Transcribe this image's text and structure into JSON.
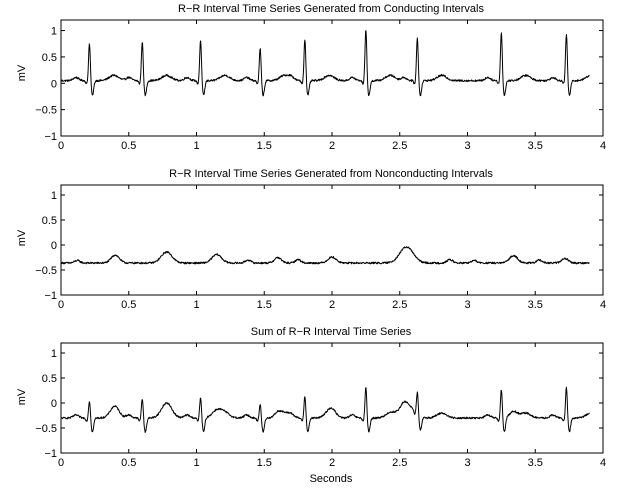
{
  "chart_data": [
    {
      "type": "line",
      "title": "R−R Interval Time Series Generated from Conducting Intervals",
      "xlabel": "",
      "ylabel": "mV",
      "xlim": [
        0,
        4
      ],
      "ylim": [
        -1,
        1.2
      ],
      "xticks": [
        "0",
        "0.5",
        "1",
        "1.5",
        "2",
        "2.5",
        "3",
        "3.5",
        "4"
      ],
      "yticks": [
        "−1",
        "−0.5",
        "0",
        "0.5",
        "1"
      ],
      "grid": false,
      "series": [
        {
          "baseline": 0.05,
          "end_x": 3.9,
          "beats": [
            0.21,
            0.6,
            1.03,
            1.47,
            1.8,
            2.25,
            2.63,
            3.25,
            3.73
          ],
          "r_amplitudes": [
            0.72,
            0.75,
            0.78,
            0.62,
            0.8,
            0.98,
            0.82,
            0.93,
            0.9
          ]
        }
      ]
    },
    {
      "type": "line",
      "title": "R−R Interval Time Series Generated from Nonconducting Intervals",
      "xlabel": "",
      "ylabel": "mV",
      "xlim": [
        0,
        4
      ],
      "ylim": [
        -1,
        1.2
      ],
      "xticks": [
        "0",
        "0.5",
        "1",
        "1.5",
        "2",
        "2.5",
        "3",
        "3.5",
        "4"
      ],
      "yticks": [
        "−1",
        "−0.5",
        "0",
        "0.5",
        "1"
      ],
      "grid": false,
      "series": [
        {
          "baseline": -0.36,
          "end_x": 3.9,
          "bumps": [
            {
              "x": 0.12,
              "height": 0.05,
              "width": 0.02
            },
            {
              "x": 0.4,
              "height": 0.16,
              "width": 0.03
            },
            {
              "x": 0.78,
              "height": 0.22,
              "width": 0.04
            },
            {
              "x": 1.15,
              "height": 0.17,
              "width": 0.035
            },
            {
              "x": 1.38,
              "height": 0.06,
              "width": 0.02
            },
            {
              "x": 1.6,
              "height": 0.11,
              "width": 0.025
            },
            {
              "x": 1.75,
              "height": 0.07,
              "width": 0.02
            },
            {
              "x": 2.0,
              "height": 0.12,
              "width": 0.03
            },
            {
              "x": 2.55,
              "height": 0.32,
              "width": 0.05
            },
            {
              "x": 2.87,
              "height": 0.07,
              "width": 0.02
            },
            {
              "x": 3.05,
              "height": 0.05,
              "width": 0.02
            },
            {
              "x": 3.34,
              "height": 0.15,
              "width": 0.03
            },
            {
              "x": 3.53,
              "height": 0.06,
              "width": 0.02
            },
            {
              "x": 3.72,
              "height": 0.09,
              "width": 0.025
            }
          ]
        }
      ]
    },
    {
      "type": "line",
      "title": "Sum of R−R Interval Time Series",
      "xlabel": "Seconds",
      "ylabel": "mV",
      "xlim": [
        0,
        4
      ],
      "ylim": [
        -1,
        1.2
      ],
      "xticks": [
        "0",
        "0.5",
        "1",
        "1.5",
        "2",
        "2.5",
        "3",
        "3.5",
        "4"
      ],
      "yticks": [
        "−1",
        "−0.5",
        "0",
        "0.5",
        "1"
      ],
      "grid": false,
      "series": [
        {
          "baseline": -0.3,
          "end_x": 3.9,
          "beats": [
            0.21,
            0.6,
            1.03,
            1.47,
            1.8,
            2.25,
            2.63,
            3.25,
            3.73
          ],
          "r_amplitudes": [
            0.35,
            0.4,
            0.42,
            0.28,
            0.45,
            0.62,
            0.45,
            0.58,
            0.62
          ],
          "bumps": [
            {
              "x": 0.4,
              "height": 0.14,
              "width": 0.03
            },
            {
              "x": 0.78,
              "height": 0.2,
              "width": 0.04
            },
            {
              "x": 1.15,
              "height": 0.15,
              "width": 0.035
            },
            {
              "x": 1.6,
              "height": 0.1,
              "width": 0.025
            },
            {
              "x": 2.0,
              "height": 0.11,
              "width": 0.03
            },
            {
              "x": 2.55,
              "height": 0.28,
              "width": 0.05
            },
            {
              "x": 3.34,
              "height": 0.13,
              "width": 0.03
            }
          ]
        }
      ]
    }
  ]
}
